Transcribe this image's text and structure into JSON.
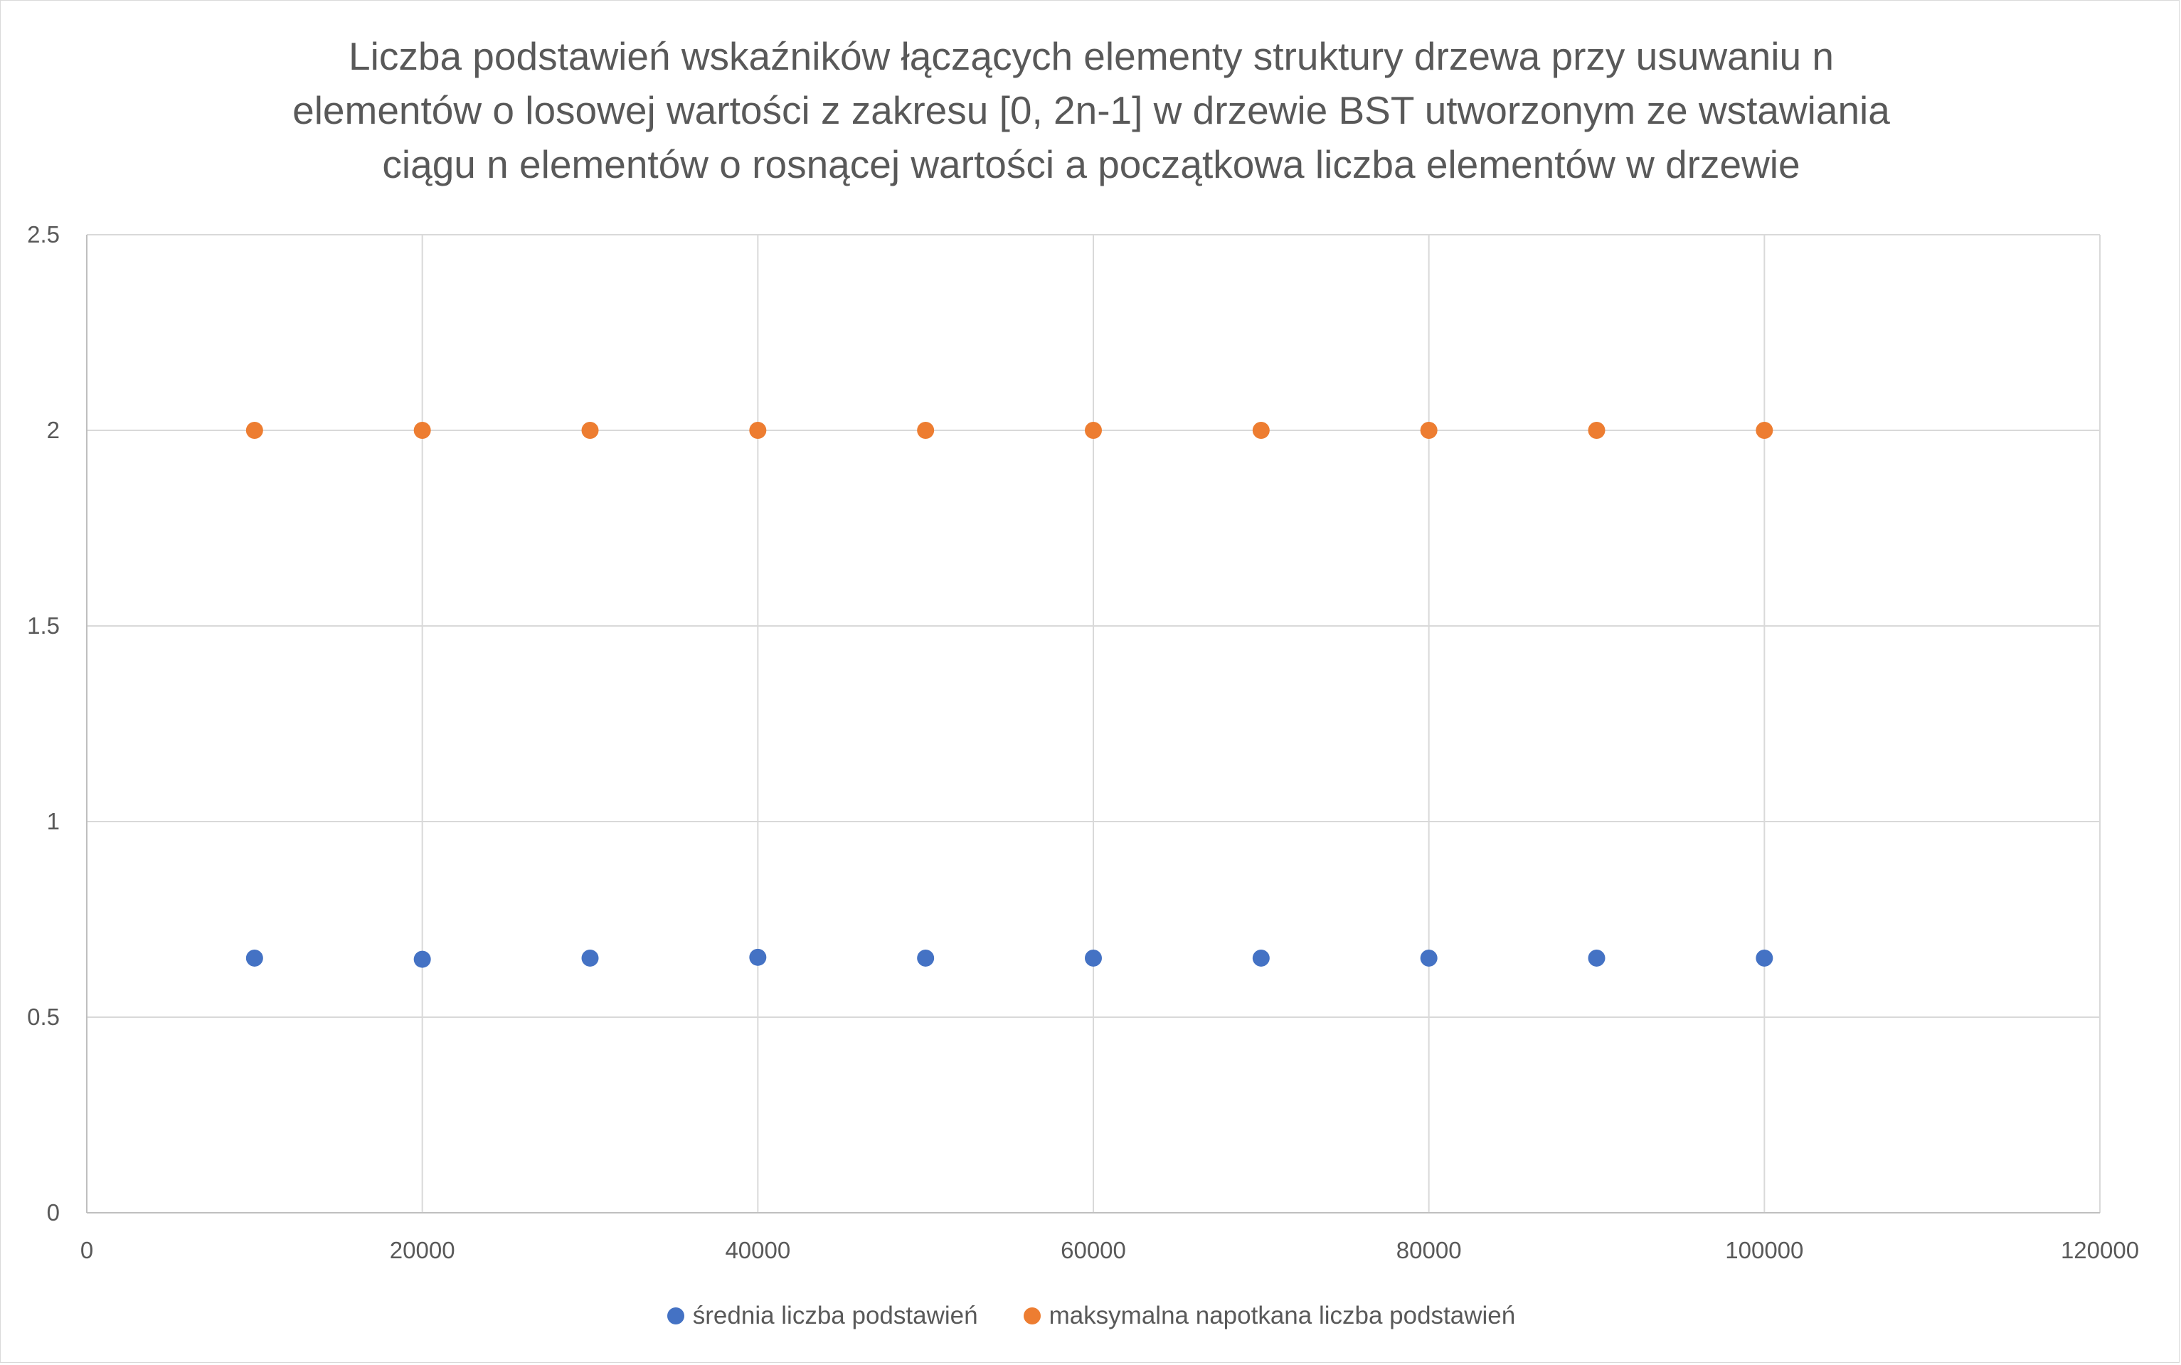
{
  "chart_data": {
    "type": "scatter",
    "title_lines": [
      "Liczba podstawień wskaźników łączących elementy struktury drzewa przy usuwaniu n",
      "elementów o losowej wartości z zakresu [0, 2n-1] w drzewie BST utworzonym ze wstawiania",
      "ciągu n elementów o rosnącej wartości a początkowa liczba elementów w drzewie"
    ],
    "xlabel": "",
    "ylabel": "",
    "xlim": [
      0,
      120000
    ],
    "ylim": [
      0,
      2.5
    ],
    "x_ticks": [
      "0",
      "20000",
      "40000",
      "60000",
      "80000",
      "100000",
      "120000"
    ],
    "y_ticks": [
      "0",
      "0.5",
      "1",
      "1.5",
      "2",
      "2.5"
    ],
    "grid": true,
    "legend_position": "bottom",
    "x": [
      10000,
      20000,
      30000,
      40000,
      50000,
      60000,
      70000,
      80000,
      90000,
      100000
    ],
    "series": [
      {
        "name": "średnia liczba podstawień",
        "color": "#4472C4",
        "values": [
          0.651,
          0.648,
          0.651,
          0.653,
          0.651,
          0.651,
          0.651,
          0.651,
          0.651,
          0.651
        ]
      },
      {
        "name": "maksymalna napotkana liczba podstawień",
        "color": "#ED7D31",
        "values": [
          2,
          2,
          2,
          2,
          2,
          2,
          2,
          2,
          2,
          2
        ]
      }
    ]
  }
}
